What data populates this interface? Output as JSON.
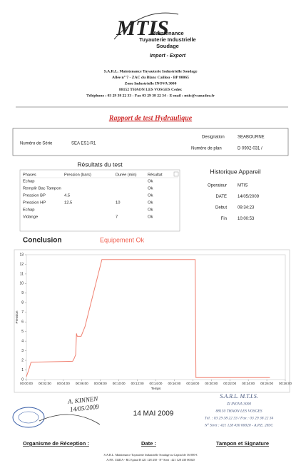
{
  "header": {
    "logo": "MTIS",
    "company_lines": [
      "Maintenance",
      "Tuyauterie Industrielle",
      "Soudage"
    ],
    "tagline": "Import - Export",
    "address": [
      "S.A.R.L. Maintenance Tuyauterie Industrielle Soudage",
      "Allée n° 7 - ZAC du Blanc Caillou - BP 80065",
      "Zone Industrielle INOVA 3000",
      "88152 THAON LES VOSGES Cedex",
      "Téléphone : 03 29 38 22 33 - Fax 03 29 38 22 34 - E-mail : mtis@wanadoo.fr"
    ]
  },
  "report_title": "Rapport de test Hydraulique",
  "info": {
    "serial_label": "Numéro de Série",
    "serial": "SEA ES1-R1",
    "designation_label": "Designation",
    "designation": "SEABOURNE",
    "plan_label": "Numéro de plan",
    "plan": "D 0902-031 /"
  },
  "results": {
    "title": "Résultats du test",
    "columns": [
      "Phases",
      "Pression (bars)",
      "Durée (min)",
      "Résultat"
    ],
    "rows": [
      [
        "Echap",
        null,
        null,
        "Ok"
      ],
      [
        "Remplir Bac Tampon",
        null,
        null,
        "Ok"
      ],
      [
        "Pression BP",
        "4.5",
        null,
        "Ok"
      ],
      [
        "Pression HP",
        "12.5",
        "10",
        "Ok"
      ],
      [
        "Echap",
        null,
        null,
        "Ok"
      ],
      [
        "Vidange",
        null,
        "7",
        "Ok"
      ]
    ]
  },
  "history": {
    "title": "Historique Appareil",
    "rows": [
      [
        "Operateur",
        "MTIS"
      ],
      [
        "DATE",
        "14/05/2009"
      ],
      [
        "Debut",
        "09:34:23"
      ],
      [
        "Fin",
        "10:00:53"
      ]
    ]
  },
  "conclusion": {
    "label": "Conclusion",
    "value": "Equipement Ok"
  },
  "chart_data": {
    "type": "line",
    "xlabel": "Temps",
    "ylabel": "Pression",
    "x": [
      0,
      15,
      30,
      300,
      310,
      320,
      325,
      330,
      355,
      380,
      490,
      1095,
      1100,
      1580
    ],
    "series": [
      {
        "name": "Pression",
        "color": "#f08070",
        "values": [
          0.3,
          1,
          1.8,
          1.9,
          2.2,
          2.6,
          4.8,
          4.5,
          4.5,
          5.5,
          12.5,
          12.5,
          0.2,
          0.2
        ]
      }
    ],
    "xlim": [
      0,
      1680
    ],
    "xticks": [
      {
        "value": 0,
        "label": "00:00:00"
      },
      {
        "value": 120,
        "label": "00:02:00"
      },
      {
        "value": 240,
        "label": "00:04:00"
      },
      {
        "value": 360,
        "label": "00:06:00"
      },
      {
        "value": 480,
        "label": "00:08:00"
      },
      {
        "value": 600,
        "label": "00:10:00"
      },
      {
        "value": 720,
        "label": "00:12:00"
      },
      {
        "value": 840,
        "label": "00:14:00"
      },
      {
        "value": 960,
        "label": "00:16:00"
      },
      {
        "value": 1080,
        "label": "00:18:00"
      },
      {
        "value": 1200,
        "label": "00:20:00"
      },
      {
        "value": 1320,
        "label": "00:22:00"
      },
      {
        "value": 1440,
        "label": "00:24:00"
      },
      {
        "value": 1560,
        "label": "00:26:00"
      },
      {
        "value": 1680,
        "label": "00:28:00"
      }
    ],
    "ylim": [
      0,
      13
    ],
    "yticks": [
      0,
      1,
      2,
      3,
      4,
      5,
      6,
      7,
      8,
      9,
      10,
      11,
      12,
      13
    ]
  },
  "signature": {
    "name": "A. KINNEN",
    "date": "14/05/2009",
    "stamp_date": "14 MAI 2009",
    "stamp_lines": [
      "S.A.R.L. M.T.I.S.",
      "ZI INOVA 3000",
      "88150 THAON LES VOSGES",
      "Tél. : 03 29 38 22 33 / Fax : 03 29 38 22 34",
      "N° Siret : 421 128 430 00020 - A.P.E. 283C"
    ]
  },
  "footer": {
    "labels": [
      "Organisme de Réception :",
      "Date :",
      "Tampon et Signature"
    ],
    "legal": [
      "S.A.R.L. Maintenance Tuyauterie Industrielle Soudage au Capital de 16 000 €",
      "A.P.E. 332DA - RC Epinal B 421 128 430 - N° Siret : 421 128 430 00020"
    ]
  }
}
